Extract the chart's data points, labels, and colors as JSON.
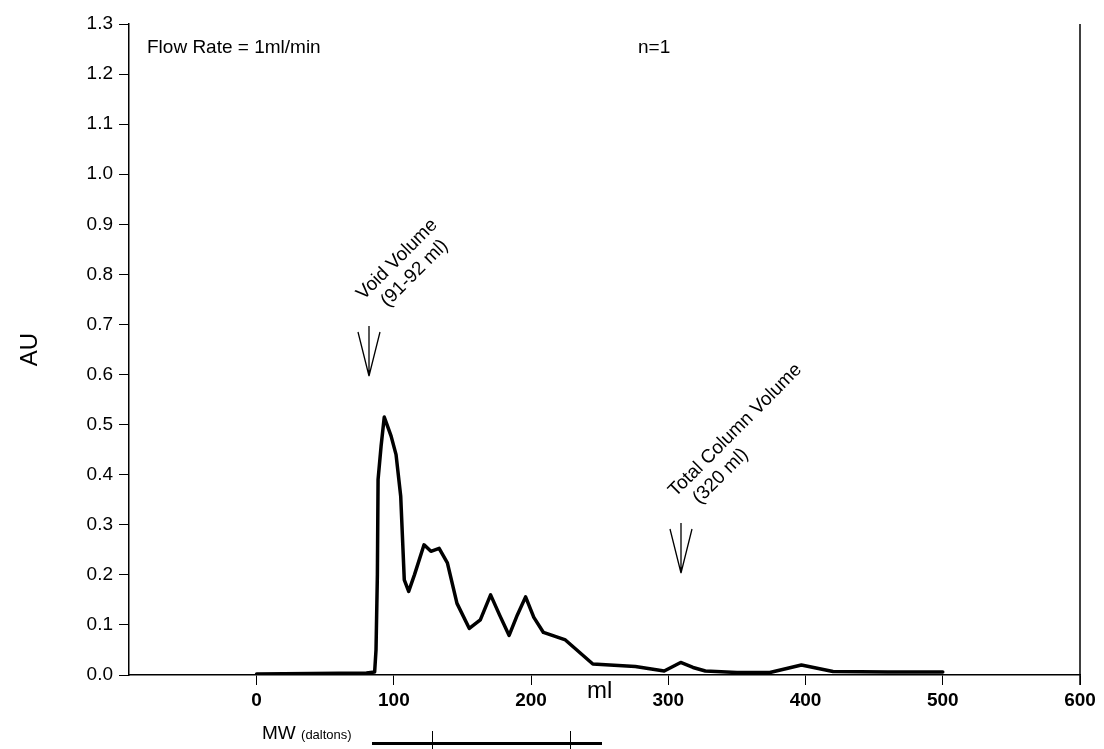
{
  "chart_data": {
    "type": "line",
    "xlabel": "ml",
    "ylabel": "AU",
    "xlim": [
      -93,
      600
    ],
    "xticks": [
      0,
      100,
      200,
      300,
      400,
      500,
      600
    ],
    "ylim": [
      0,
      1.3
    ],
    "yticks": [
      {
        "value": 0,
        "label": "0.0"
      },
      0.1,
      0.2,
      0.3,
      0.4,
      0.5,
      0.6,
      0.7,
      0.8,
      0.9,
      {
        "value": 1,
        "label": "1.0"
      },
      1.1,
      1.2,
      1.3
    ],
    "grid": false,
    "legend": false,
    "marker": "none",
    "line_style": "solid",
    "series": [
      {
        "color": "#000000",
        "x": [
          0,
          40,
          80,
          86,
          87,
          88,
          88.5,
          90.7,
          93,
          95,
          98,
          101.6,
          105,
          107.6,
          110.8,
          115,
          122,
          127,
          133,
          139,
          146,
          155,
          163,
          170.5,
          177,
          184,
          190,
          196,
          202,
          209,
          225,
          245,
          276,
          297,
          309,
          318,
          327,
          350,
          374,
          397,
          420,
          460,
          500
        ],
        "values": [
          0.002,
          0.003,
          0.004,
          0.006,
          0.05,
          0.2,
          0.39,
          0.457,
          0.515,
          0.5,
          0.477,
          0.44,
          0.357,
          0.19,
          0.167,
          0.2,
          0.26,
          0.247,
          0.253,
          0.224,
          0.143,
          0.093,
          0.11,
          0.16,
          0.12,
          0.079,
          0.12,
          0.156,
          0.115,
          0.085,
          0.07,
          0.022,
          0.017,
          0.008,
          0.025,
          0.015,
          0.008,
          0.005,
          0.005,
          0.02,
          0.007,
          0.006,
          0.006
        ]
      }
    ],
    "annotations": [
      "Flow Rate = 1ml/min",
      "n=1",
      "MW (daltons)",
      "Void Volume (91-92 ml)",
      "Total Column Volume (320 ml)"
    ]
  }
}
